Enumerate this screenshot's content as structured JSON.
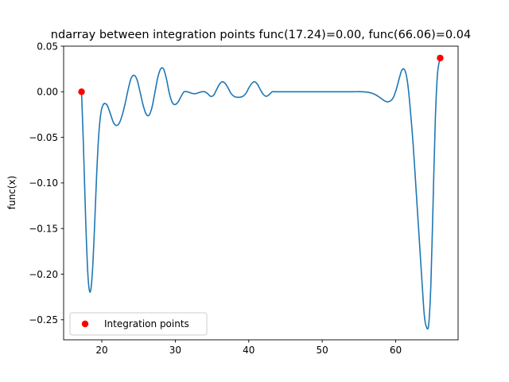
{
  "chart_data": {
    "type": "line",
    "title": "ndarray between integration points func(17.24)=0.00, func(66.06)=0.04",
    "xlabel": "",
    "ylabel": "func(x)",
    "xlim": [
      14.8,
      68.5
    ],
    "ylim": [
      -0.272,
      0.05
    ],
    "x_ticks": [
      20,
      30,
      40,
      50,
      60
    ],
    "x_tick_labels": [
      "20",
      "30",
      "40",
      "50",
      "60"
    ],
    "y_ticks": [
      0.05,
      0.0,
      -0.05,
      -0.1,
      -0.15,
      -0.2,
      -0.25
    ],
    "y_tick_labels": [
      "0.05",
      "0.00",
      "−0.05",
      "−0.10",
      "−0.15",
      "−0.20",
      "−0.25"
    ],
    "grid": false,
    "legend_position": "lower-left",
    "series": [
      {
        "name": "func(x)",
        "color": "#1f77b4",
        "x": [
          17.24,
          17.5,
          17.8,
          18.1,
          18.4,
          18.7,
          19.0,
          19.3,
          19.6,
          19.9,
          20.2,
          20.5,
          20.8,
          21.2,
          21.6,
          22.0,
          22.4,
          22.8,
          23.2,
          23.6,
          24.0,
          24.4,
          24.8,
          25.2,
          25.6,
          26.0,
          26.4,
          26.8,
          27.2,
          27.6,
          28.0,
          28.4,
          28.8,
          29.2,
          29.6,
          30.0,
          30.4,
          30.8,
          31.2,
          31.6,
          32.0,
          32.4,
          32.8,
          33.2,
          33.6,
          34.0,
          34.4,
          34.8,
          35.2,
          35.6,
          36.0,
          36.4,
          36.8,
          37.2,
          37.6,
          38.0,
          38.4,
          38.8,
          39.2,
          39.6,
          40.0,
          40.4,
          40.8,
          41.2,
          41.6,
          42.0,
          42.4,
          42.8,
          43.2,
          43.6,
          44.0,
          44.4,
          44.8,
          45.2,
          45.6,
          46.0,
          46.4,
          46.8,
          47.2,
          48.0,
          50.0,
          52.0,
          54.0,
          55.5,
          56.5,
          57.2,
          57.8,
          58.3,
          58.8,
          59.3,
          59.7,
          60.1,
          60.5,
          60.8,
          61.1,
          61.4,
          61.7,
          62.0,
          62.4,
          62.8,
          63.2,
          63.6,
          63.9,
          64.2,
          64.5,
          64.8,
          65.1,
          65.4,
          65.7,
          66.06
        ],
        "y": [
          0.0,
          -0.06,
          -0.14,
          -0.2,
          -0.22,
          -0.2,
          -0.15,
          -0.09,
          -0.045,
          -0.022,
          -0.014,
          -0.013,
          -0.016,
          -0.025,
          -0.034,
          -0.037,
          -0.034,
          -0.025,
          -0.012,
          0.003,
          0.015,
          0.018,
          0.013,
          0.0,
          -0.014,
          -0.024,
          -0.026,
          -0.018,
          -0.002,
          0.015,
          0.025,
          0.025,
          0.014,
          -0.002,
          -0.012,
          -0.014,
          -0.011,
          -0.005,
          0.0,
          0.0,
          -0.001,
          -0.002,
          -0.002,
          -0.001,
          0.0,
          0.0,
          -0.002,
          -0.005,
          -0.004,
          0.002,
          0.008,
          0.011,
          0.009,
          0.004,
          -0.002,
          -0.005,
          -0.006,
          -0.006,
          -0.005,
          -0.002,
          0.004,
          0.009,
          0.011,
          0.008,
          0.002,
          -0.003,
          -0.005,
          -0.003,
          0.0,
          0.0,
          0.0,
          0.0,
          0.0,
          0.0,
          0.0,
          0.0,
          0.0,
          0.0,
          0.0,
          0.0,
          0.0,
          0.0,
          0.0,
          0.0,
          -0.001,
          -0.003,
          -0.006,
          -0.009,
          -0.011,
          -0.01,
          -0.006,
          0.003,
          0.015,
          0.023,
          0.025,
          0.02,
          0.005,
          -0.02,
          -0.06,
          -0.11,
          -0.16,
          -0.21,
          -0.245,
          -0.258,
          -0.255,
          -0.21,
          -0.12,
          -0.03,
          0.02,
          0.037
        ]
      }
    ],
    "points": {
      "name": "Integration points",
      "color": "#ff0000",
      "x": [
        17.24,
        66.06
      ],
      "y": [
        0.0,
        0.037
      ]
    }
  }
}
